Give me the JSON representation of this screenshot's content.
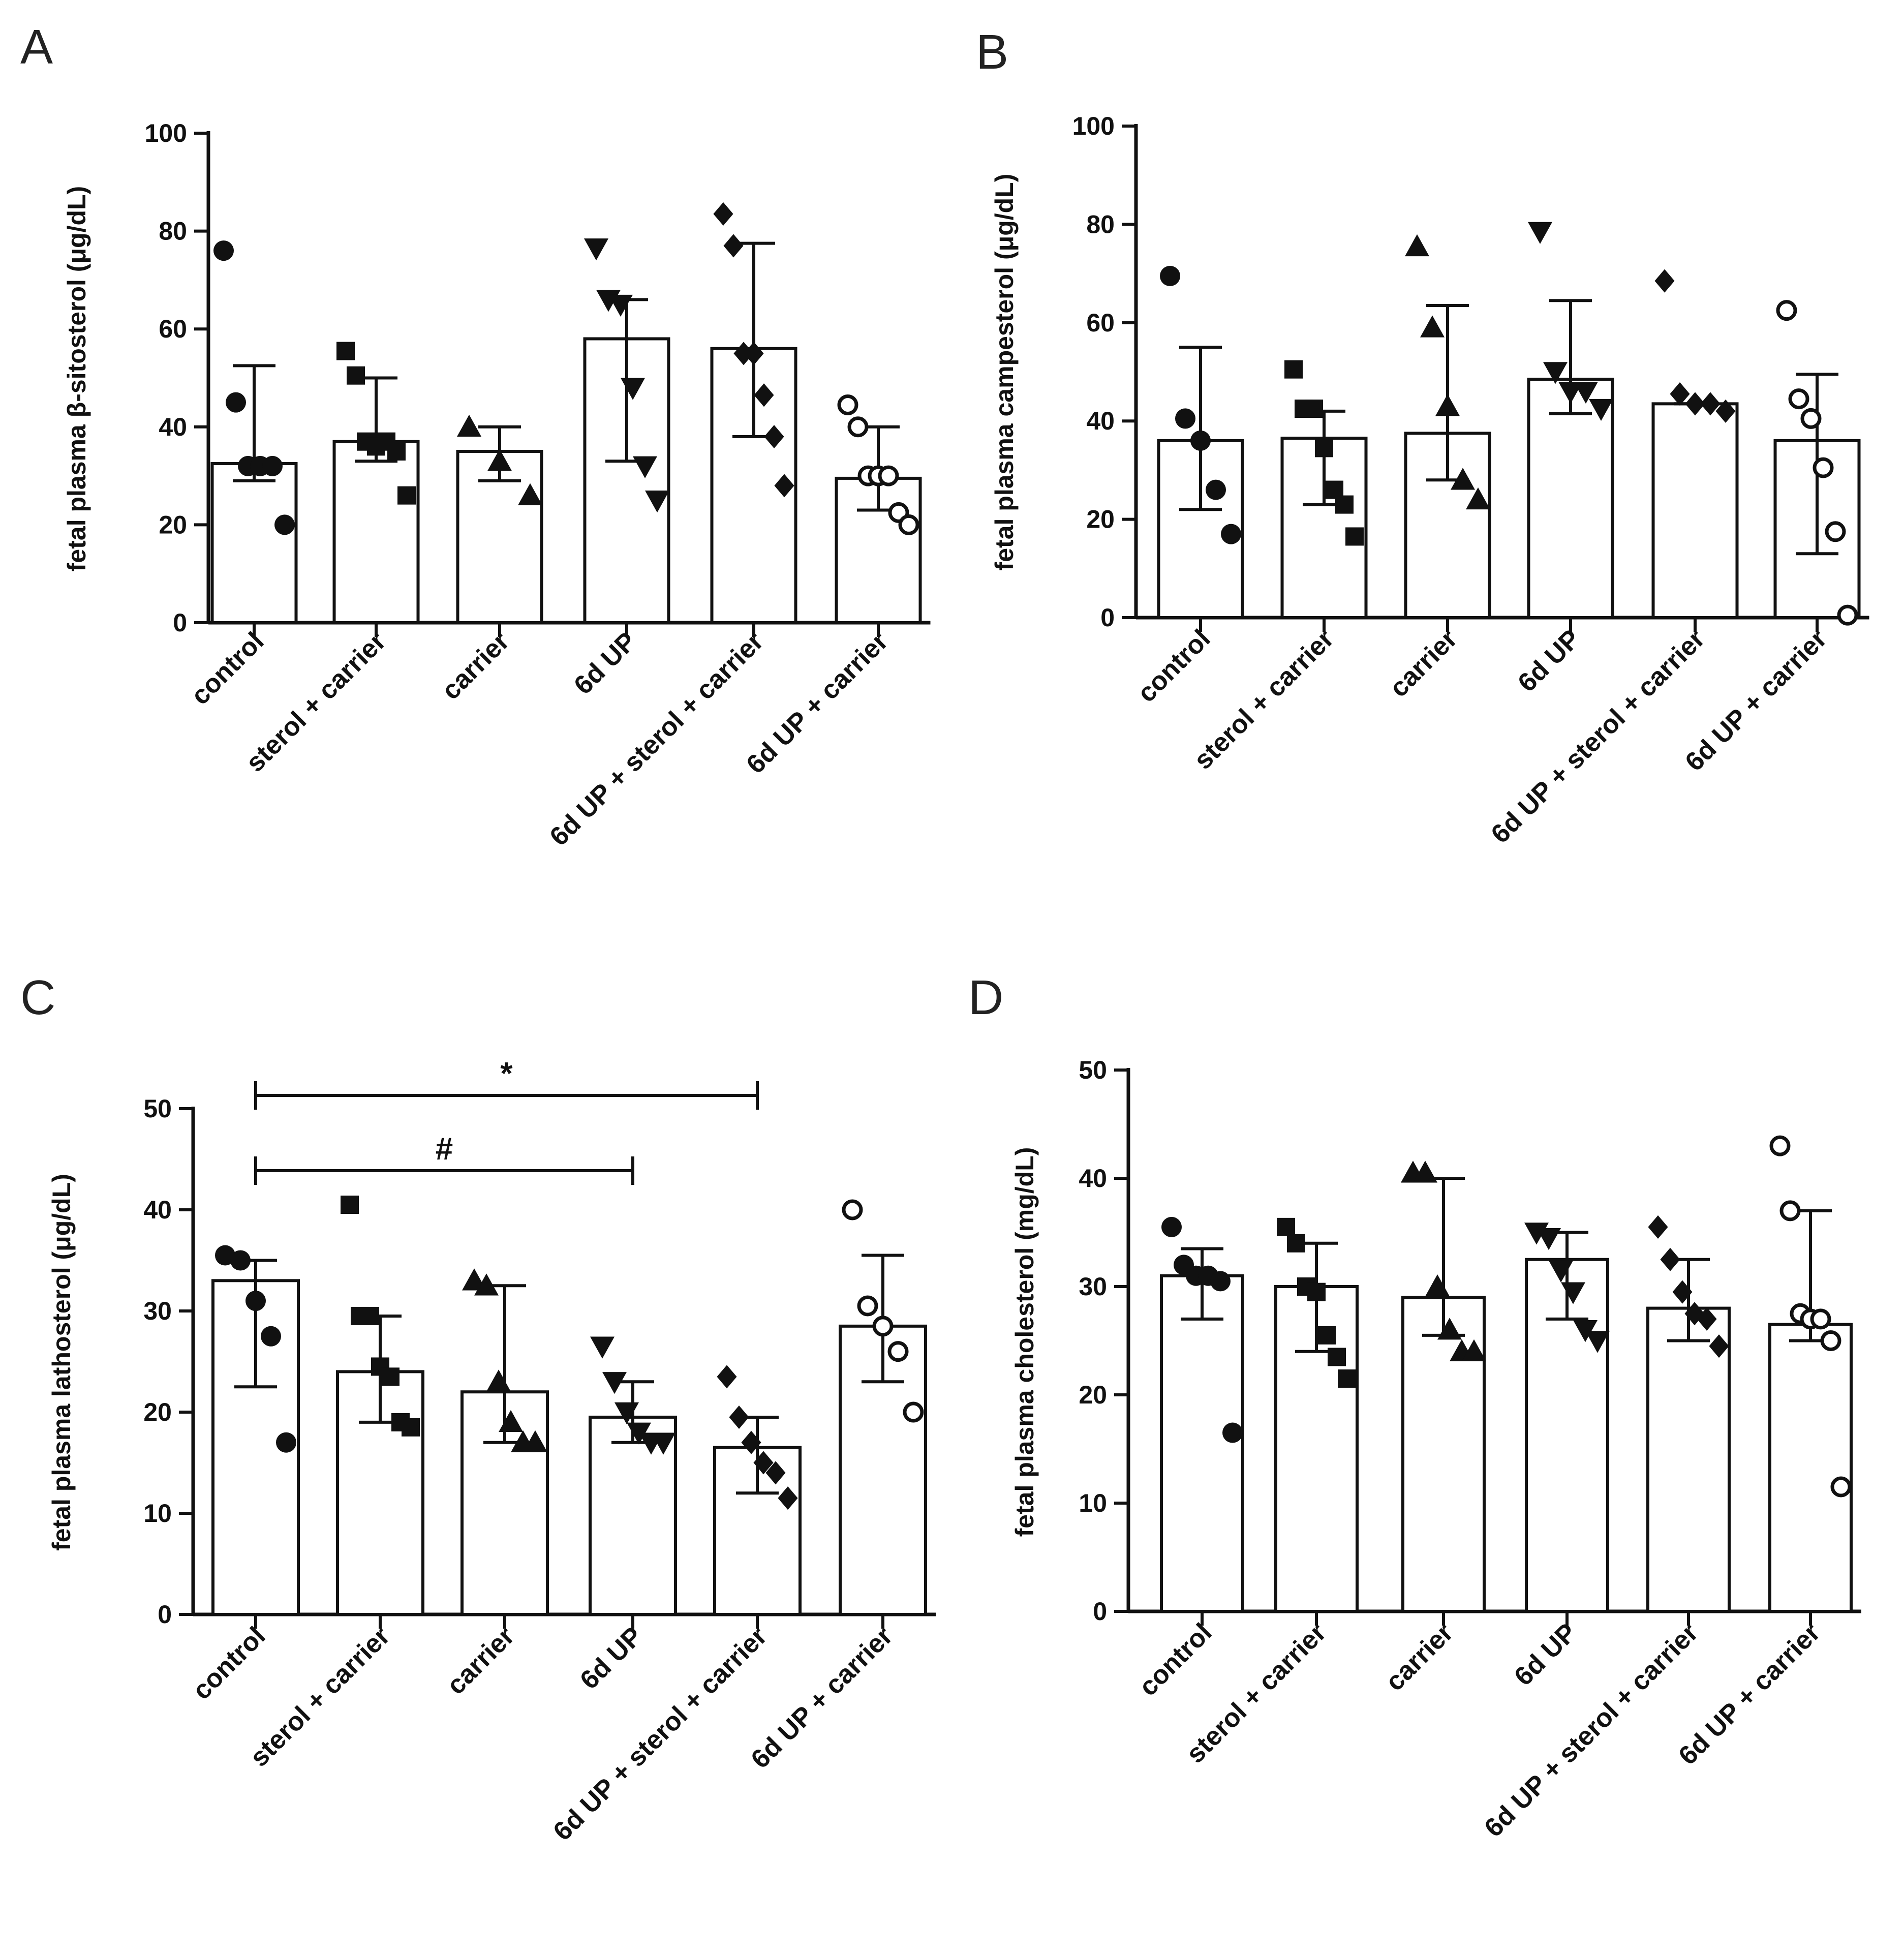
{
  "figure": {
    "panel_letters": [
      "A",
      "B",
      "C",
      "D"
    ]
  },
  "colors": {
    "ink": "#111111",
    "bar_fill": "#ffffff",
    "background": "#ffffff"
  },
  "chart_data": [
    {
      "panel": "A",
      "type": "bar",
      "ylabel": "fetal plasma β-sitosterol (μg/dL)",
      "ylim": [
        0,
        100
      ],
      "yticks": [
        0,
        20,
        40,
        60,
        80,
        100
      ],
      "categories": [
        "control",
        "sterol + carrier",
        "carrier",
        "6d UP",
        "6d UP + sterol + carrier",
        "6d UP + carrier"
      ],
      "markers": [
        "circle",
        "square",
        "triangle-up",
        "triangle-down",
        "diamond",
        "circle-open"
      ],
      "values": [
        32.5,
        37,
        35,
        58,
        56,
        29.5
      ],
      "err_low": [
        29,
        33,
        29,
        33,
        38,
        23
      ],
      "err_high": [
        52.5,
        50,
        40,
        66,
        77.5,
        40
      ],
      "points": [
        [
          76,
          45,
          32,
          32,
          32,
          20
        ],
        [
          55.5,
          50.5,
          37,
          36,
          37,
          35,
          26
        ],
        [
          40,
          33,
          26
        ],
        [
          76.5,
          66,
          65,
          48,
          32,
          25
        ],
        [
          83.5,
          77,
          55,
          55,
          46.5,
          38,
          28
        ],
        [
          44.5,
          40,
          30,
          30,
          30,
          22.5,
          20
        ]
      ],
      "significance": []
    },
    {
      "panel": "B",
      "type": "bar",
      "ylabel": "fetal plasma campesterol (μg/dL)",
      "ylim": [
        0,
        100
      ],
      "yticks": [
        0,
        20,
        40,
        60,
        80,
        100
      ],
      "categories": [
        "control",
        "sterol + carrier",
        "carrier",
        "6d UP",
        "6d UP + sterol + carrier",
        "6d UP + carrier"
      ],
      "markers": [
        "circle",
        "square",
        "triangle-up",
        "triangle-down",
        "diamond",
        "circle-open"
      ],
      "values": [
        36,
        36.5,
        37.5,
        48.5,
        43.5,
        36
      ],
      "err_low": [
        22,
        23,
        28,
        41.5,
        43.5,
        13
      ],
      "err_high": [
        55,
        42,
        63.5,
        64.5,
        43.5,
        49.5
      ],
      "points": [
        [
          69.5,
          40.5,
          36,
          26,
          17
        ],
        [
          50.5,
          42.5,
          42.5,
          34.5,
          26,
          23,
          16.5
        ],
        [
          75.5,
          59,
          43,
          28,
          24
        ],
        [
          78.5,
          50,
          46,
          46,
          42.5
        ],
        [
          68.5,
          45.5,
          43.5,
          43.5,
          42
        ],
        [
          62.5,
          44.5,
          40.5,
          30.5,
          17.5,
          0.5
        ]
      ],
      "significance": []
    },
    {
      "panel": "C",
      "type": "bar",
      "ylabel": "fetal plasma lathosterol (μg/dL)",
      "ylim": [
        0,
        50
      ],
      "yticks": [
        0,
        10,
        20,
        30,
        40,
        50
      ],
      "categories": [
        "control",
        "sterol + carrier",
        "carrier",
        "6d UP",
        "6d UP + sterol + carrier",
        "6d UP + carrier"
      ],
      "markers": [
        "circle",
        "square",
        "triangle-up",
        "triangle-down",
        "diamond",
        "circle-open"
      ],
      "values": [
        33,
        24,
        22,
        19.5,
        16.5,
        28.5
      ],
      "err_low": [
        22.5,
        19,
        17,
        17,
        12,
        23
      ],
      "err_high": [
        35,
        29.5,
        32.5,
        23,
        19.5,
        35.5
      ],
      "points": [
        [
          35.5,
          35,
          31,
          27.5,
          17
        ],
        [
          40.5,
          29.5,
          29.5,
          24.5,
          23.5,
          19,
          18.5
        ],
        [
          33,
          32.5,
          23,
          19,
          17,
          17
        ],
        [
          26.5,
          23,
          20,
          18,
          17,
          17
        ],
        [
          23.5,
          19.5,
          17,
          15,
          14,
          11.5
        ],
        [
          40,
          30.5,
          28.5,
          26,
          20
        ]
      ],
      "significance": [
        {
          "label": "*",
          "from": "control",
          "to": "6d UP + sterol + carrier"
        },
        {
          "label": "#",
          "from": "control",
          "to": "6d UP"
        }
      ]
    },
    {
      "panel": "D",
      "type": "bar",
      "ylabel": "fetal plasma cholesterol (mg/dL)",
      "ylim": [
        0,
        50
      ],
      "yticks": [
        0,
        10,
        20,
        30,
        40,
        50
      ],
      "categories": [
        "control",
        "sterol + carrier",
        "carrier",
        "6d UP",
        "6d UP + sterol + carrier",
        "6d UP + carrier"
      ],
      "markers": [
        "circle",
        "square",
        "triangle-up",
        "triangle-down",
        "diamond",
        "circle-open"
      ],
      "values": [
        31,
        30,
        29,
        32.5,
        28,
        26.5
      ],
      "err_low": [
        27,
        24,
        25.5,
        27,
        25,
        25
      ],
      "err_high": [
        33.5,
        34,
        40,
        35,
        32.5,
        37
      ],
      "points": [
        [
          35.5,
          32,
          31,
          31,
          30.5,
          16.5
        ],
        [
          35.5,
          34,
          30,
          29.5,
          25.5,
          23.5,
          21.5
        ],
        [
          40.5,
          40.5,
          30,
          26,
          24,
          24
        ],
        [
          35,
          34.5,
          31.5,
          29.5,
          26,
          25
        ],
        [
          35.5,
          32.5,
          29.5,
          27.5,
          27,
          24.5
        ],
        [
          43,
          37,
          27.5,
          27,
          27,
          25,
          11.5
        ]
      ],
      "significance": []
    }
  ]
}
